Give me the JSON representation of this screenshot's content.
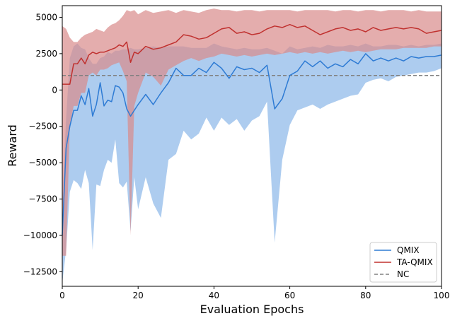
{
  "chart_data": {
    "type": "line",
    "xlabel": "Evaluation Epochs",
    "ylabel": "Reward",
    "xlim": [
      0,
      100
    ],
    "ylim": [
      -13500,
      5800
    ],
    "xticks": [
      0,
      20,
      40,
      60,
      80,
      100
    ],
    "yticks": [
      -12500,
      -10000,
      -7500,
      -5000,
      -2500,
      0,
      2500,
      5000
    ],
    "grid": false,
    "legend_position": "bottom-right",
    "series": [
      {
        "name": "QMIX",
        "color": "#2e7bd4",
        "band_color": "#a9c9ee",
        "x": [
          0,
          1,
          2,
          3,
          4,
          5,
          6,
          7,
          8,
          9,
          10,
          11,
          12,
          13,
          14,
          15,
          16,
          17,
          18,
          19,
          20,
          22,
          24,
          26,
          28,
          30,
          32,
          34,
          36,
          38,
          40,
          42,
          44,
          46,
          48,
          50,
          52,
          54,
          56,
          58,
          60,
          62,
          64,
          66,
          68,
          70,
          72,
          74,
          76,
          78,
          80,
          82,
          84,
          86,
          88,
          90,
          92,
          94,
          96,
          98,
          100
        ],
        "mean": [
          -10000,
          -4000,
          -2500,
          -1400,
          -1400,
          -400,
          -1000,
          100,
          -1800,
          -1000,
          500,
          -1100,
          -700,
          -800,
          300,
          200,
          -200,
          -1300,
          -1800,
          -1400,
          -1000,
          -300,
          -1000,
          -200,
          500,
          1500,
          1000,
          1000,
          1500,
          1200,
          1900,
          1500,
          800,
          1600,
          1400,
          1500,
          1200,
          1700,
          -1300,
          -600,
          1000,
          1300,
          2000,
          1600,
          2000,
          1500,
          1800,
          1600,
          2100,
          1800,
          2500,
          2000,
          2200,
          2000,
          2200,
          2000,
          2300,
          2200,
          2300,
          2300,
          2400
        ],
        "upper": [
          -8000,
          -2000,
          2200,
          3000,
          3200,
          2900,
          2800,
          2200,
          1800,
          1800,
          2200,
          2300,
          2600,
          2500,
          2700,
          2700,
          2800,
          2800,
          2900,
          2800,
          2800,
          2900,
          3000,
          2900,
          3000,
          3000,
          3000,
          2900,
          2900,
          2900,
          3200,
          3000,
          2900,
          2800,
          2900,
          2800,
          2800,
          2900,
          2700,
          2500,
          3000,
          2800,
          2900,
          3000,
          2900,
          3100,
          3000,
          3000,
          3100,
          3000,
          3200,
          3000,
          3000,
          3100,
          3100,
          3000,
          3100,
          3000,
          3100,
          3100,
          3200
        ],
        "lower": [
          -13300,
          -11000,
          -7000,
          -6200,
          -6400,
          -6800,
          -5500,
          -6400,
          -11000,
          -6500,
          -6600,
          -5500,
          -4800,
          -5000,
          -3400,
          -6400,
          -6700,
          -6300,
          -9700,
          -6000,
          -8200,
          -6000,
          -7800,
          -8800,
          -4800,
          -4400,
          -2800,
          -3400,
          -3000,
          -1900,
          -2800,
          -1900,
          -2400,
          -2000,
          -2800,
          -2100,
          -1800,
          -800,
          -10500,
          -4800,
          -2400,
          -1400,
          -1200,
          -1000,
          -1300,
          -1000,
          -800,
          -600,
          -400,
          -300,
          500,
          700,
          800,
          600,
          900,
          1000,
          1100,
          1200,
          1200,
          1300,
          1500
        ]
      },
      {
        "name": "TA-QMIX",
        "color": "#c0312f",
        "band_color": "#d98a8a",
        "x": [
          0,
          1,
          2,
          3,
          4,
          5,
          6,
          7,
          8,
          9,
          10,
          11,
          12,
          13,
          14,
          15,
          16,
          17,
          18,
          19,
          20,
          22,
          24,
          26,
          28,
          30,
          32,
          34,
          36,
          38,
          40,
          42,
          44,
          46,
          48,
          50,
          52,
          54,
          56,
          58,
          60,
          62,
          64,
          66,
          68,
          70,
          72,
          74,
          76,
          78,
          80,
          82,
          84,
          86,
          88,
          90,
          92,
          94,
          96,
          98,
          100
        ],
        "mean": [
          400,
          400,
          400,
          1800,
          1800,
          2200,
          1800,
          2400,
          2600,
          2500,
          2600,
          2600,
          2700,
          2800,
          2900,
          3100,
          3000,
          3300,
          1900,
          2600,
          2500,
          3000,
          2800,
          2900,
          3100,
          3300,
          3800,
          3700,
          3500,
          3600,
          3900,
          4200,
          4300,
          3900,
          4000,
          3800,
          3900,
          4200,
          4400,
          4300,
          4500,
          4300,
          4400,
          4100,
          3800,
          4000,
          4200,
          4300,
          4100,
          4200,
          4000,
          4300,
          4100,
          4200,
          4300,
          4200,
          4300,
          4200,
          3900,
          4000,
          4100
        ],
        "upper": [
          4400,
          4200,
          3600,
          3300,
          3300,
          3600,
          3800,
          3900,
          4000,
          4200,
          4100,
          4000,
          4300,
          4500,
          4600,
          4800,
          5100,
          5500,
          5400,
          5500,
          5200,
          5500,
          5300,
          5400,
          5500,
          5300,
          5500,
          5400,
          5300,
          5500,
          5600,
          5500,
          5500,
          5400,
          5500,
          5500,
          5400,
          5500,
          5500,
          5500,
          5500,
          5400,
          5500,
          5500,
          5500,
          5500,
          5400,
          5500,
          5500,
          5400,
          5500,
          5500,
          5400,
          5500,
          5500,
          5500,
          5400,
          5500,
          5400,
          5400,
          5400
        ],
        "lower": [
          -11400,
          -11400,
          -2400,
          -1100,
          -1100,
          -200,
          -200,
          1000,
          1200,
          1000,
          1400,
          1400,
          1500,
          1700,
          1800,
          1900,
          1300,
          600,
          -10000,
          -1100,
          -200,
          1200,
          900,
          300,
          1400,
          1700,
          2000,
          2200,
          2000,
          2200,
          2300,
          2500,
          2400,
          2300,
          2400,
          2300,
          2400,
          2500,
          2400,
          2500,
          2600,
          2500,
          2600,
          2500,
          2600,
          2500,
          2600,
          2700,
          2600,
          2700,
          2600,
          2700,
          2800,
          2800,
          2800,
          2900,
          2900,
          2900,
          2900,
          3000,
          3000
        ]
      },
      {
        "name": "NC",
        "color": "#808080",
        "style": "dashed",
        "x": [
          0,
          100
        ],
        "mean": [
          1000,
          1000
        ]
      }
    ]
  }
}
